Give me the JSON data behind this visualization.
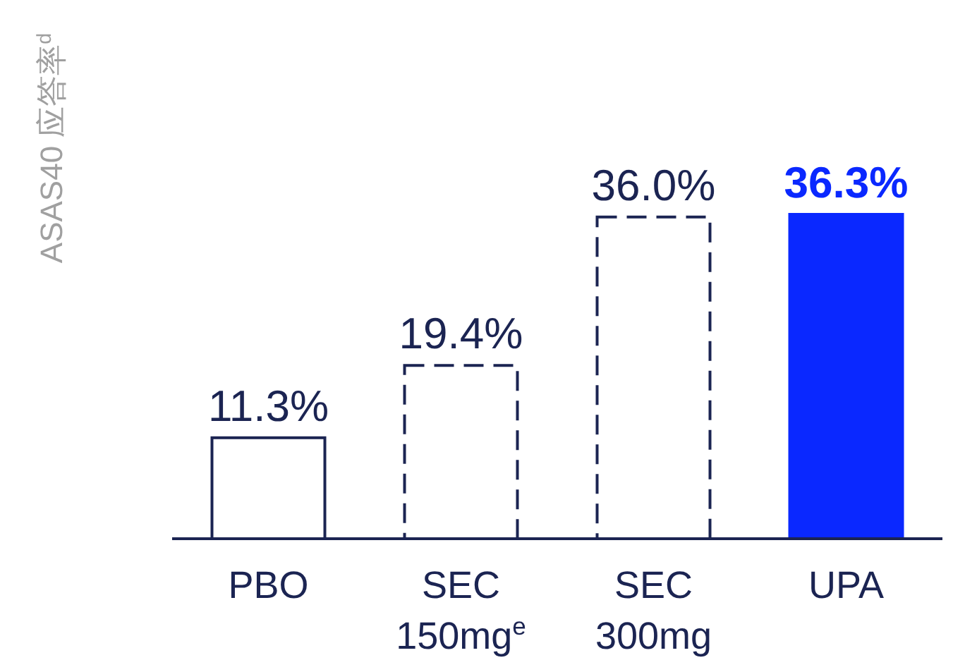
{
  "chart_data": {
    "type": "bar",
    "ylabel": "ASAS40 应答率$^{d}$",
    "categories": [
      "PBO",
      "SEC\n150mg$^{e}$",
      "SEC\n300mg",
      "UPA"
    ],
    "series": [
      {
        "color": "#ffffff",
        "line_style": "solid",
        "values": [
          11.3,
          null,
          null,
          null
        ],
        "value_labels": [
          "11.3%",
          null,
          null,
          null
        ]
      },
      {
        "color": "#ffffff",
        "line_style": "dashed",
        "values": [
          null,
          19.4,
          36.0,
          null
        ],
        "value_labels": [
          null,
          "19.4%",
          "36.0%",
          null
        ]
      },
      {
        "color": "#0a28ff",
        "values": [
          null,
          null,
          null,
          36.3
        ],
        "value_labels": [
          null,
          null,
          null,
          "36.3%"
        ]
      }
    ],
    "data_labels": false
  }
}
